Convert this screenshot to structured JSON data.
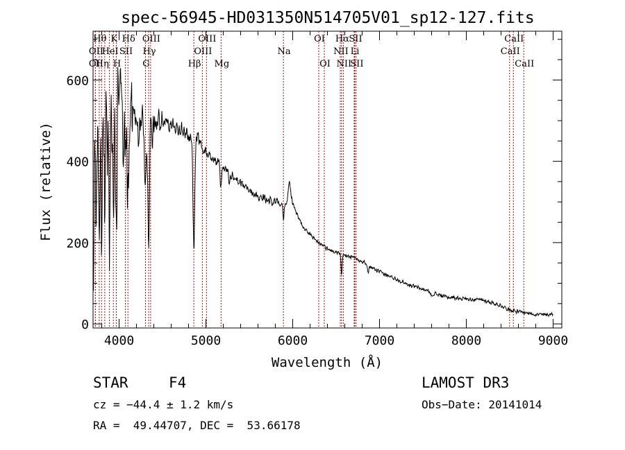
{
  "chart_data": {
    "type": "line",
    "title": "spec-56945-HD031350N514705V01_sp12-127.fits",
    "xlabel": "Wavelength (Å)",
    "ylabel": "Flux (relative)",
    "xlim": [
      3700,
      9100
    ],
    "ylim": [
      -10,
      720
    ],
    "xticks": [
      4000,
      5000,
      6000,
      7000,
      8000,
      9000
    ],
    "yticks": [
      0,
      200,
      400,
      600
    ],
    "x_minor_step": 200,
    "y_minor_step": 50,
    "line_color": "#000000",
    "marker_color": "#cc0000",
    "series": [
      {
        "name": "flux",
        "continuum": [
          [
            3700,
            250
          ],
          [
            3740,
            330
          ],
          [
            3780,
            420
          ],
          [
            3820,
            470
          ],
          [
            3860,
            480
          ],
          [
            3900,
            490
          ],
          [
            3950,
            505
          ],
          [
            4000,
            515
          ],
          [
            4100,
            520
          ],
          [
            4200,
            510
          ],
          [
            4300,
            500
          ],
          [
            4400,
            495
          ],
          [
            4500,
            500
          ],
          [
            4600,
            490
          ],
          [
            4700,
            480
          ],
          [
            4800,
            465
          ],
          [
            4900,
            440
          ],
          [
            5000,
            420
          ],
          [
            5100,
            405
          ],
          [
            5200,
            385
          ],
          [
            5300,
            365
          ],
          [
            5400,
            345
          ],
          [
            5500,
            330
          ],
          [
            5600,
            315
          ],
          [
            5700,
            305
          ],
          [
            5800,
            300
          ],
          [
            5850,
            300
          ],
          [
            5900,
            295
          ],
          [
            5950,
            300
          ],
          [
            5980,
            305
          ],
          [
            6000,
            300
          ],
          [
            6050,
            270
          ],
          [
            6100,
            245
          ],
          [
            6200,
            220
          ],
          [
            6300,
            200
          ],
          [
            6400,
            185
          ],
          [
            6500,
            175
          ],
          [
            6600,
            168
          ],
          [
            6700,
            162
          ],
          [
            6800,
            155
          ],
          [
            6900,
            140
          ],
          [
            7000,
            128
          ],
          [
            7100,
            118
          ],
          [
            7200,
            110
          ],
          [
            7300,
            100
          ],
          [
            7400,
            92
          ],
          [
            7500,
            85
          ],
          [
            7600,
            78
          ],
          [
            7700,
            70
          ],
          [
            7800,
            65
          ],
          [
            7900,
            64
          ],
          [
            8000,
            62
          ],
          [
            8100,
            60
          ],
          [
            8200,
            58
          ],
          [
            8300,
            52
          ],
          [
            8400,
            45
          ],
          [
            8500,
            35
          ],
          [
            8600,
            30
          ],
          [
            8700,
            27
          ],
          [
            8800,
            24
          ],
          [
            8900,
            22
          ],
          [
            9000,
            25
          ]
        ],
        "features": [
          {
            "center": 3705,
            "width": 4,
            "depth": 250
          },
          {
            "center": 3720,
            "width": 5,
            "depth": -200
          },
          {
            "center": 3735,
            "width": 5,
            "depth": 160
          },
          {
            "center": 3760,
            "width": 5,
            "depth": -150
          },
          {
            "center": 3770,
            "width": 6,
            "depth": 190
          },
          {
            "center": 3798,
            "width": 6,
            "depth": 200
          },
          {
            "center": 3835,
            "width": 7,
            "depth": 230
          },
          {
            "center": 3889,
            "width": 8,
            "depth": 250
          },
          {
            "center": 3934,
            "width": 6,
            "depth": 240
          },
          {
            "center": 3968,
            "width": 8,
            "depth": 280
          },
          {
            "center": 3990,
            "width": 6,
            "depth": -130
          },
          {
            "center": 4020,
            "width": 6,
            "depth": -120
          },
          {
            "center": 4045,
            "width": 6,
            "depth": 60
          },
          {
            "center": 4101,
            "width": 10,
            "depth": 200
          },
          {
            "center": 4226,
            "width": 6,
            "depth": 80
          },
          {
            "center": 4300,
            "width": 10,
            "depth": 140
          },
          {
            "center": 4340,
            "width": 10,
            "depth": 280
          },
          {
            "center": 4383,
            "width": 6,
            "depth": 60
          },
          {
            "center": 4861,
            "width": 10,
            "depth": 260
          },
          {
            "center": 4920,
            "width": 20,
            "depth": -25
          },
          {
            "center": 5172,
            "width": 8,
            "depth": 60
          },
          {
            "center": 5270,
            "width": 6,
            "depth": 30
          },
          {
            "center": 5893,
            "width": 5,
            "depth": 40
          },
          {
            "center": 5960,
            "width": 10,
            "depth": -50
          },
          {
            "center": 6563,
            "width": 6,
            "depth": 55
          },
          {
            "center": 6870,
            "width": 8,
            "depth": 20
          },
          {
            "center": 7600,
            "width": 12,
            "depth": 10
          }
        ],
        "noise": [
          {
            "from": 3700,
            "to": 3900,
            "amp": 130
          },
          {
            "from": 3900,
            "to": 4150,
            "amp": 110
          },
          {
            "from": 4150,
            "to": 4500,
            "amp": 40
          },
          {
            "from": 4500,
            "to": 5000,
            "amp": 22
          },
          {
            "from": 5000,
            "to": 6000,
            "amp": 12
          },
          {
            "from": 6000,
            "to": 9000,
            "amp": 6
          }
        ],
        "step_angstrom": 4
      }
    ],
    "line_markers": [
      {
        "wave": 3727,
        "label": "OII",
        "row": 2
      },
      {
        "wave": 3727,
        "label": "OII",
        "row": 3
      },
      {
        "wave": 3771,
        "label": "Hθ",
        "row": 1
      },
      {
        "wave": 3798,
        "label": "Hη",
        "row": 3
      },
      {
        "wave": 3835,
        "label": "",
        "row": 0
      },
      {
        "wave": 3889,
        "label": "HeI",
        "row": 2
      },
      {
        "wave": 3934,
        "label": "K",
        "row": 1
      },
      {
        "wave": 3968,
        "label": "H",
        "row": 3
      },
      {
        "wave": 4072,
        "label": "SII",
        "row": 2
      },
      {
        "wave": 4102,
        "label": "Hδ",
        "row": 1
      },
      {
        "wave": 4304,
        "label": "G",
        "row": 3
      },
      {
        "wave": 4340,
        "label": "Hγ",
        "row": 2
      },
      {
        "wave": 4363,
        "label": "OIII",
        "row": 1
      },
      {
        "wave": 4861,
        "label": "Hβ",
        "row": 3
      },
      {
        "wave": 4959,
        "label": "OIII",
        "row": 2
      },
      {
        "wave": 5007,
        "label": "OIII",
        "row": 1
      },
      {
        "wave": 5175,
        "label": "Mg",
        "row": 3
      },
      {
        "wave": 5893,
        "label": "Na",
        "row": 2
      },
      {
        "wave": 6300,
        "label": "OI",
        "row": 1
      },
      {
        "wave": 6364,
        "label": "OI",
        "row": 3
      },
      {
        "wave": 6548,
        "label": "NII",
        "row": 2
      },
      {
        "wave": 6563,
        "label": "Hα",
        "row": 1
      },
      {
        "wave": 6583,
        "label": "NII",
        "row": 3
      },
      {
        "wave": 6708,
        "label": "Li",
        "row": 2
      },
      {
        "wave": 6716,
        "label": "SII",
        "row": 1
      },
      {
        "wave": 6731,
        "label": "SII",
        "row": 3
      },
      {
        "wave": 8498,
        "label": "CaII",
        "row": 2
      },
      {
        "wave": 8542,
        "label": "CaII",
        "row": 1
      },
      {
        "wave": 8662,
        "label": "CaII",
        "row": 3
      }
    ]
  },
  "info": {
    "object_class": "STAR",
    "subclass": "F4",
    "survey": "LAMOST DR3",
    "velocity": "cz = −44.4 ± 1.2 km/s",
    "obs_date": "Obs−Date: 20141014",
    "coords": "RA =  49.44707, DEC =  53.66178"
  }
}
